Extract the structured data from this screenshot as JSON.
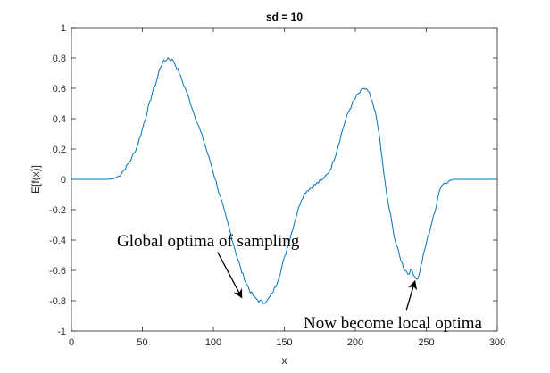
{
  "chart_data": {
    "type": "line",
    "title": "sd = 10",
    "xlabel": "x",
    "ylabel": "E[f(x)]",
    "xlim": [
      0,
      300
    ],
    "ylim": [
      -1,
      1
    ],
    "xticks": [
      0,
      50,
      100,
      150,
      200,
      250,
      300
    ],
    "yticks": [
      -1,
      -0.8,
      -0.6,
      -0.4,
      -0.2,
      0,
      0.2,
      0.4,
      0.6,
      0.8,
      1
    ],
    "grid": false,
    "line_color": "#0072BD",
    "series": [
      {
        "x": [
          0,
          10,
          20,
          25,
          28,
          30,
          33,
          36,
          40,
          43,
          46,
          49,
          52,
          55,
          57,
          60,
          62,
          64,
          66,
          68,
          70,
          72,
          74,
          76,
          78,
          81,
          84,
          87,
          90,
          93,
          96,
          99,
          102,
          105,
          108,
          111,
          114,
          117,
          120,
          123,
          126,
          129,
          132,
          135,
          138,
          141,
          144,
          147,
          150,
          153,
          156,
          159,
          162,
          165,
          168,
          171,
          174,
          177,
          180,
          183,
          186,
          189,
          192,
          195,
          198,
          201,
          204,
          206,
          208,
          210,
          212,
          214,
          216,
          218,
          220,
          222,
          225,
          228,
          231,
          234,
          237,
          240,
          242,
          244,
          246,
          248,
          250,
          252,
          254,
          256,
          258,
          260,
          263,
          266,
          269,
          272,
          275,
          278,
          281,
          285,
          290,
          295,
          300
        ],
        "y": [
          0,
          0,
          0,
          0,
          0.002,
          0.005,
          0.02,
          0.05,
          0.1,
          0.15,
          0.21,
          0.3,
          0.4,
          0.5,
          0.57,
          0.65,
          0.72,
          0.77,
          0.78,
          0.8,
          0.79,
          0.78,
          0.74,
          0.7,
          0.65,
          0.58,
          0.5,
          0.42,
          0.34,
          0.26,
          0.17,
          0.08,
          -0.02,
          -0.12,
          -0.22,
          -0.32,
          -0.42,
          -0.52,
          -0.61,
          -0.68,
          -0.74,
          -0.78,
          -0.8,
          -0.81,
          -0.8,
          -0.76,
          -0.7,
          -0.62,
          -0.52,
          -0.42,
          -0.32,
          -0.22,
          -0.13,
          -0.08,
          -0.06,
          -0.04,
          -0.02,
          0,
          0.03,
          0.08,
          0.16,
          0.26,
          0.36,
          0.44,
          0.5,
          0.55,
          0.58,
          0.6,
          0.59,
          0.56,
          0.5,
          0.44,
          0.35,
          0.2,
          0.05,
          -0.1,
          -0.25,
          -0.4,
          -0.5,
          -0.58,
          -0.62,
          -0.6,
          -0.64,
          -0.66,
          -0.58,
          -0.5,
          -0.42,
          -0.35,
          -0.28,
          -0.22,
          -0.12,
          -0.05,
          -0.02,
          -0.01,
          0,
          0,
          0,
          0,
          0,
          0,
          0,
          0,
          0
        ]
      }
    ],
    "annotations": [
      {
        "text": "Global optima of sampling",
        "arrow_from": [
          103,
          -0.48
        ],
        "arrow_to": [
          120,
          -0.78
        ]
      },
      {
        "text": "Now become local optima",
        "arrow_from": [
          236,
          -0.86
        ],
        "arrow_to": [
          242,
          -0.67
        ]
      }
    ]
  }
}
